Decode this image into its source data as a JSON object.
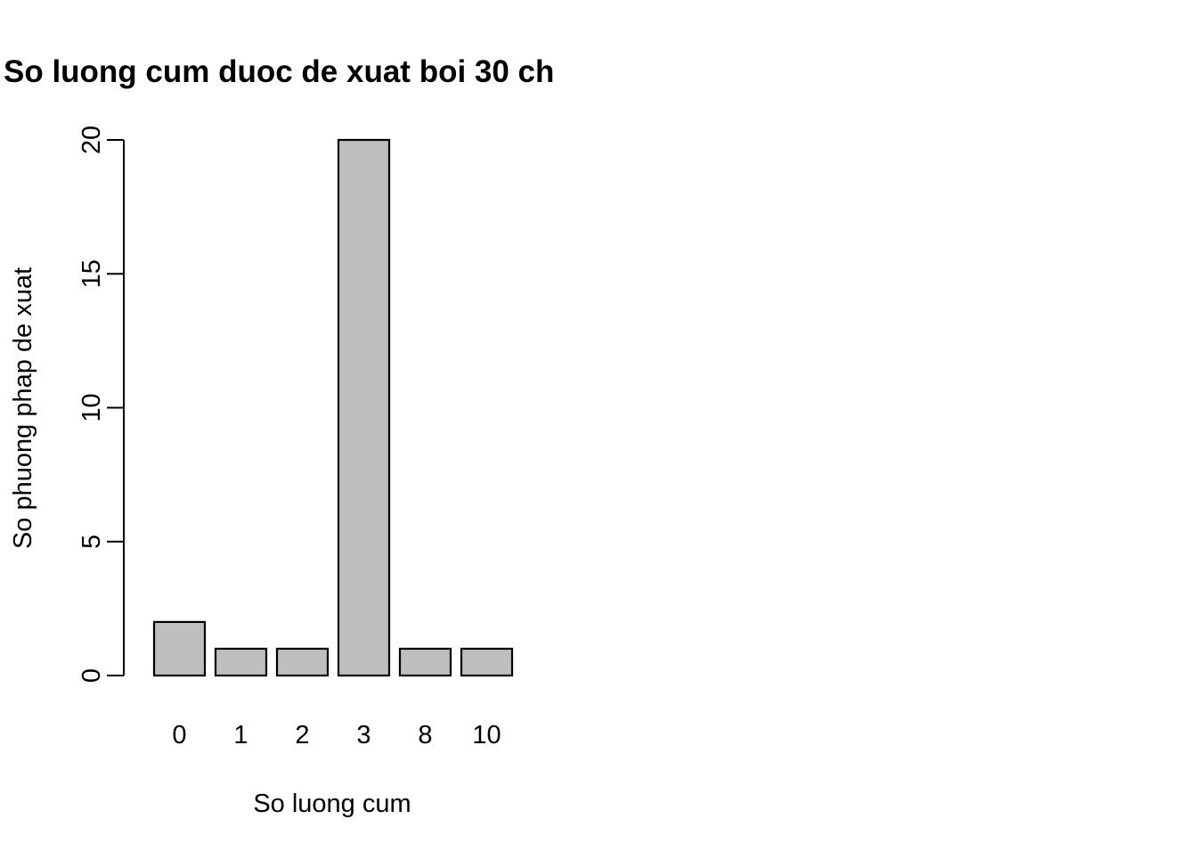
{
  "chart_data": {
    "type": "bar",
    "title": "So luong cum duoc de xuat boi 30 ch",
    "xlabel": "So luong cum",
    "ylabel": "So phuong phap de xuat",
    "categories": [
      "0",
      "1",
      "2",
      "3",
      "8",
      "10"
    ],
    "values": [
      2,
      1,
      1,
      20,
      1,
      1
    ],
    "ylim": [
      0,
      20
    ],
    "yticks": [
      "0",
      "5",
      "10",
      "15",
      "20"
    ],
    "grid": false,
    "legend": "none",
    "bar_color": "#bebebe",
    "border_color": "#000000"
  }
}
